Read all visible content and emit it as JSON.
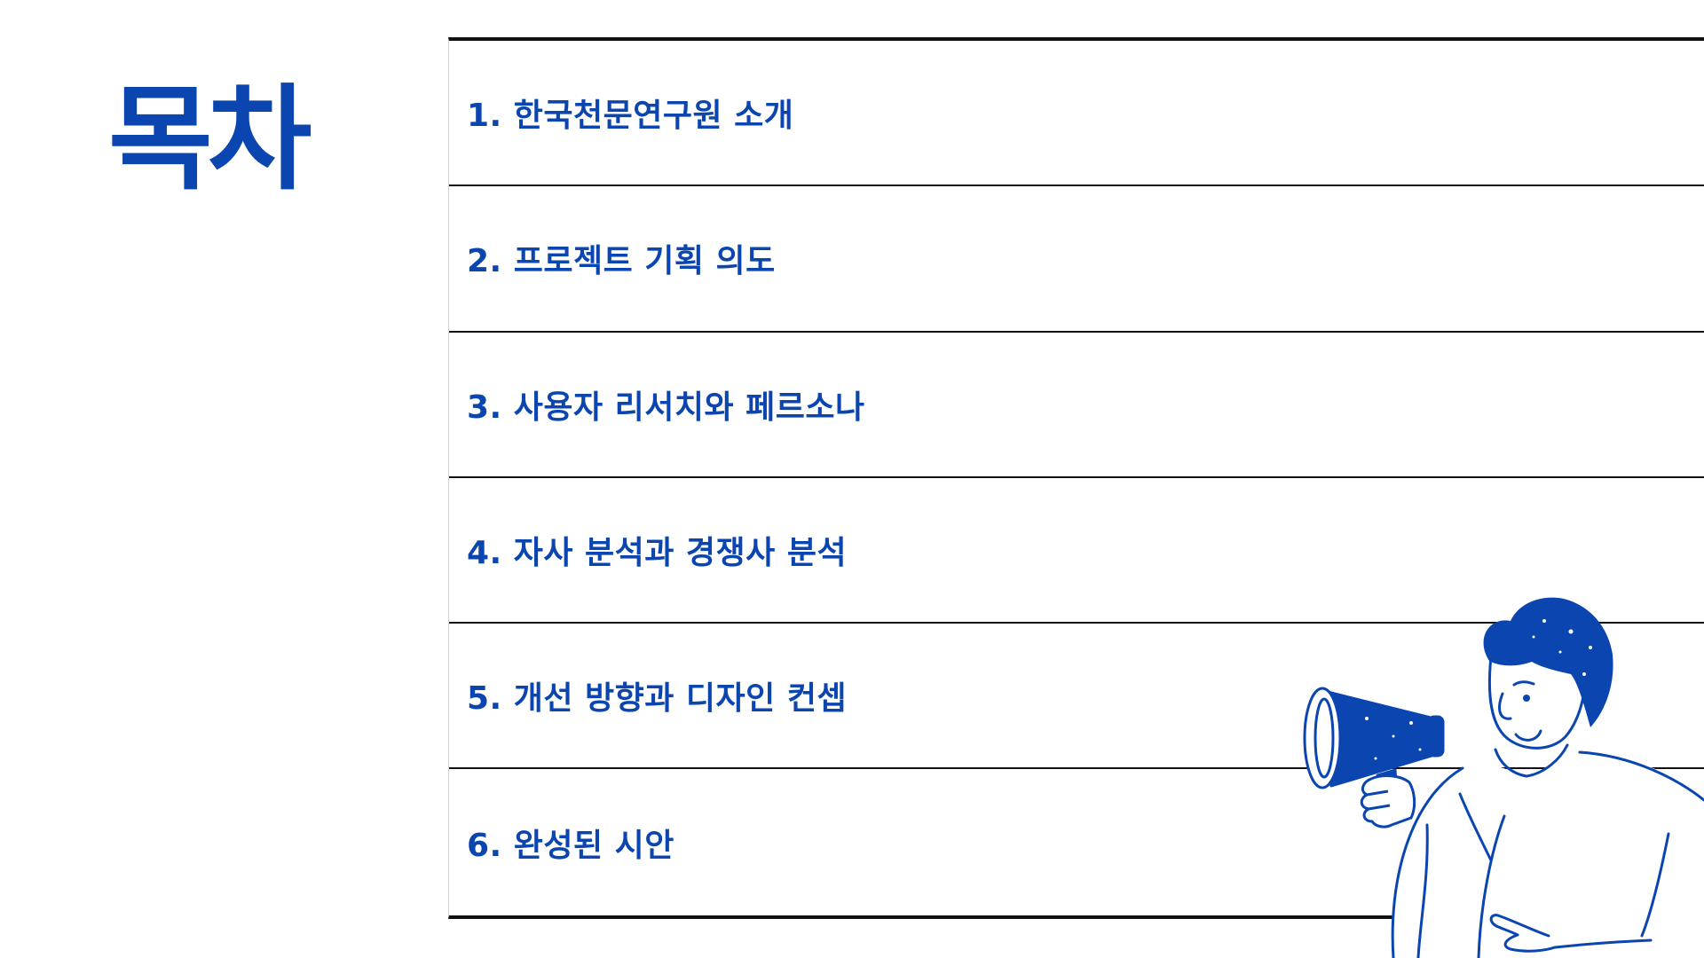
{
  "title": "목차",
  "toc": {
    "items": [
      {
        "label": "1. 한국천문연구원 소개"
      },
      {
        "label": "2. 프로젝트 기획 의도"
      },
      {
        "label": "3. 사용자 리서치와 페르소나"
      },
      {
        "label": "4. 자사 분석과 경쟁사 분석"
      },
      {
        "label": "5. 개선 방향과 디자인 컨셉"
      },
      {
        "label": "6. 완성된 시안"
      }
    ]
  },
  "colors": {
    "accent": "#0b45b0",
    "rule": "#111111",
    "background": "#ffffff"
  },
  "illustration": {
    "icon": "person-with-megaphone-illustration"
  }
}
